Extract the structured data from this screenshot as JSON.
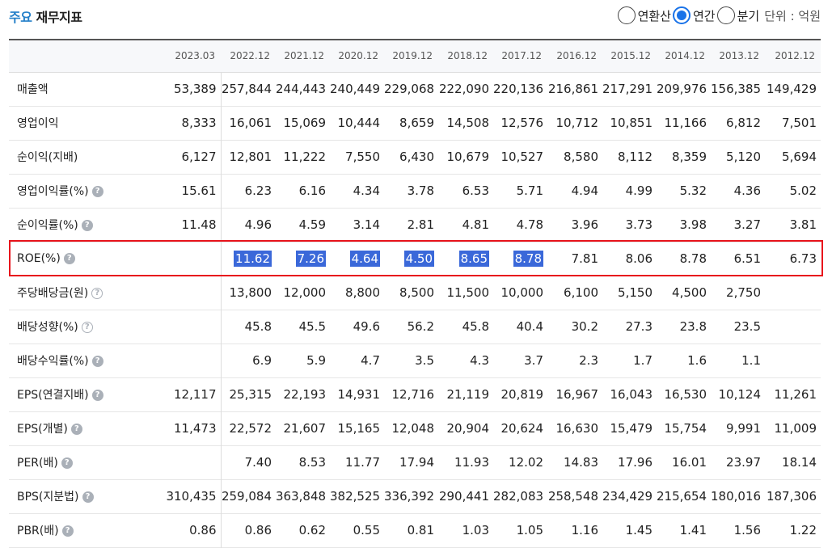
{
  "header": {
    "title_accent": "주요",
    "title_rest": "재무지표",
    "options": [
      {
        "label": "연환산",
        "checked": false
      },
      {
        "label": "연간",
        "checked": true
      },
      {
        "label": "분기",
        "checked": false
      }
    ],
    "unit": "단위 : 억원"
  },
  "colors": {
    "accent": "#2580c9",
    "radio": "#1a73e8",
    "selection": "#3a68d9",
    "highlight_border": "#e8141c"
  },
  "table": {
    "columns": [
      "2023.03",
      "2022.12",
      "2021.12",
      "2020.12",
      "2019.12",
      "2018.12",
      "2017.12",
      "2016.12",
      "2015.12",
      "2014.12",
      "2013.12",
      "2012.12"
    ],
    "rows": [
      {
        "label": "매출액",
        "help": "",
        "values": [
          "53,389",
          "257,844",
          "244,443",
          "240,449",
          "229,068",
          "222,090",
          "220,136",
          "216,861",
          "217,291",
          "209,976",
          "156,385",
          "149,429"
        ]
      },
      {
        "label": "영업이익",
        "help": "",
        "values": [
          "8,333",
          "16,061",
          "15,069",
          "10,444",
          "8,659",
          "14,508",
          "12,576",
          "10,712",
          "10,851",
          "11,166",
          "6,812",
          "7,501"
        ]
      },
      {
        "label": "순이익(지배)",
        "help": "",
        "values": [
          "6,127",
          "12,801",
          "11,222",
          "7,550",
          "6,430",
          "10,679",
          "10,527",
          "8,580",
          "8,112",
          "8,359",
          "5,120",
          "5,694"
        ]
      },
      {
        "label": "영업이익률(%)",
        "help": "filled",
        "values": [
          "15.61",
          "6.23",
          "6.16",
          "4.34",
          "3.78",
          "6.53",
          "5.71",
          "4.94",
          "4.99",
          "5.32",
          "4.36",
          "5.02"
        ]
      },
      {
        "label": "순이익률(%)",
        "help": "filled",
        "values": [
          "11.48",
          "4.96",
          "4.59",
          "3.14",
          "2.81",
          "4.81",
          "4.78",
          "3.96",
          "3.73",
          "3.98",
          "3.27",
          "3.81"
        ]
      },
      {
        "label": "ROE(%)",
        "help": "filled",
        "highlighted": true,
        "selected_count": 6,
        "values": [
          "",
          "11.62",
          "7.26",
          "4.64",
          "4.50",
          "8.65",
          "8.78",
          "7.81",
          "8.06",
          "8.78",
          "6.51",
          "6.73"
        ]
      },
      {
        "label": "주당배당금(원)",
        "help": "outline",
        "values": [
          "",
          "13,800",
          "12,000",
          "8,800",
          "8,500",
          "11,500",
          "10,000",
          "6,100",
          "5,150",
          "4,500",
          "2,750",
          ""
        ]
      },
      {
        "label": "배당성향(%)",
        "help": "outline",
        "values": [
          "",
          "45.8",
          "45.5",
          "49.6",
          "56.2",
          "45.8",
          "40.4",
          "30.2",
          "27.3",
          "23.8",
          "23.5",
          ""
        ]
      },
      {
        "label": "배당수익률(%)",
        "help": "filled",
        "values": [
          "",
          "6.9",
          "5.9",
          "4.7",
          "3.5",
          "4.3",
          "3.7",
          "2.3",
          "1.7",
          "1.6",
          "1.1",
          ""
        ]
      },
      {
        "label": "EPS(연결지배)",
        "help": "filled",
        "values": [
          "12,117",
          "25,315",
          "22,193",
          "14,931",
          "12,716",
          "21,119",
          "20,819",
          "16,967",
          "16,043",
          "16,530",
          "10,124",
          "11,261"
        ]
      },
      {
        "label": "EPS(개별)",
        "help": "filled",
        "values": [
          "11,473",
          "22,572",
          "21,607",
          "15,165",
          "12,048",
          "20,904",
          "20,624",
          "16,630",
          "15,479",
          "15,754",
          "9,991",
          "11,009"
        ]
      },
      {
        "label": "PER(배)",
        "help": "filled",
        "values": [
          "",
          "7.40",
          "8.53",
          "11.77",
          "17.94",
          "11.93",
          "12.02",
          "14.83",
          "17.96",
          "16.01",
          "23.97",
          "18.14"
        ]
      },
      {
        "label": "BPS(지분법)",
        "help": "filled",
        "values": [
          "310,435",
          "259,084",
          "363,848",
          "382,525",
          "336,392",
          "290,441",
          "282,083",
          "258,548",
          "234,429",
          "215,654",
          "180,016",
          "187,306"
        ]
      },
      {
        "label": "PBR(배)",
        "help": "filled",
        "values": [
          "0.86",
          "0.86",
          "0.62",
          "0.55",
          "0.81",
          "1.03",
          "1.05",
          "1.16",
          "1.45",
          "1.41",
          "1.56",
          "1.22"
        ]
      }
    ]
  }
}
